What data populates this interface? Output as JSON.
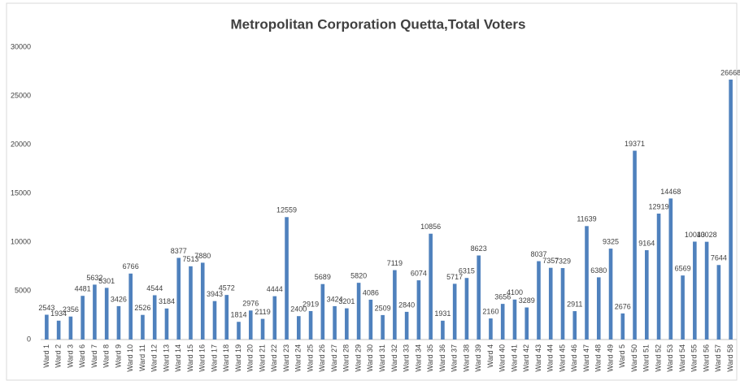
{
  "chart_data": {
    "type": "bar",
    "title": "Metropolitan Corporation Quetta,Total Voters",
    "categories": [
      "Ward 1",
      "Ward 2",
      "Ward 3",
      "Ward 6",
      "Ward 7",
      "Ward 8",
      "Ward 9",
      "Ward 10",
      "Ward 11",
      "Ward 12",
      "Ward 13",
      "Ward 14",
      "Ward 15",
      "Ward 16",
      "Ward 17",
      "Ward 18",
      "Ward 19",
      "Ward 20",
      "Ward 21",
      "Ward 22",
      "Ward 23",
      "Ward 24",
      "Ward 25",
      "Ward 26",
      "Ward 27",
      "Ward 28",
      "Ward 29",
      "Ward 30",
      "Ward 31",
      "Ward 32",
      "Ward 33",
      "Ward 34",
      "Ward 35",
      "Ward 36",
      "Ward 37",
      "Ward 38",
      "Ward 39",
      "Ward 4",
      "Ward 40",
      "Ward 41",
      "Ward 42",
      "Ward 43",
      "Ward 44",
      "Ward 45",
      "Ward 46",
      "Ward 47",
      "Ward 48",
      "Ward 49",
      "Ward 5",
      "Ward 50",
      "Ward 51",
      "Ward 52",
      "Ward 53",
      "Ward 54",
      "Ward 55",
      "Ward 56",
      "Ward 57",
      "Ward 58"
    ],
    "values": [
      2543,
      1934,
      2356,
      4481,
      5632,
      5301,
      3426,
      6766,
      2526,
      4544,
      3184,
      8377,
      7513,
      7880,
      3943,
      4572,
      1814,
      2976,
      2119,
      4444,
      12559,
      2400,
      2919,
      5689,
      3424,
      3201,
      5820,
      4086,
      2509,
      7119,
      2840,
      6074,
      10856,
      1931,
      5717,
      6315,
      8623,
      2160,
      3656,
      4100,
      3289,
      8037,
      7357,
      7329,
      2911,
      11639,
      6380,
      9325,
      2676,
      19371,
      9164,
      12919,
      14468,
      6569,
      10043,
      10028,
      7644,
      26668
    ],
    "color": "#4f81bd",
    "ylim": [
      0,
      30000
    ],
    "yticks": [
      0,
      5000,
      10000,
      15000,
      20000,
      25000,
      30000
    ],
    "grid": false
  }
}
